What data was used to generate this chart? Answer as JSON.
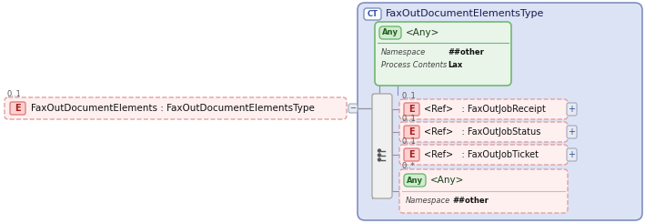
{
  "bg_color": "#ffffff",
  "main_box_color": "#dce3f5",
  "main_box_border": "#8090c0",
  "ct_label": "CT",
  "ct_label_bg": "#ffffff",
  "ct_label_border": "#8090c0",
  "main_title": "FaxOutDocumentElementsType",
  "any_box_bg": "#eaf5ea",
  "any_box_border": "#70b870",
  "any_badge_bg": "#d0ebd0",
  "any_label": "Any",
  "any_text": "<Any>",
  "any_namespace_label": "Namespace",
  "any_namespace_value": "##other",
  "any_process_label": "Process Contents",
  "any_process_value": "Lax",
  "seq_box_bg": "#f0f0f0",
  "seq_box_border": "#aaaaaa",
  "elem_dash_bg": "#fff0f0",
  "elem_dash_border": "#e0a0a0",
  "e_badge_bg": "#ffd0d0",
  "e_badge_border": "#e08080",
  "e_label": "E",
  "left_elem_bg": "#fff0f0",
  "left_elem_border": "#e0a0a0",
  "left_cardinality": "0..1",
  "left_label": "FaxOutDocumentElements : FaxOutDocumentElementsType",
  "minus_bg": "#e8eaf0",
  "minus_border": "#a0a8c0",
  "plus_bg": "#e8eaf0",
  "plus_border": "#a0a8c0",
  "elements": [
    {
      "cardinality": "0..1",
      "text": "<Ref>   : FaxOutJobReceipt"
    },
    {
      "cardinality": "0..1",
      "text": "<Ref>   : FaxOutJobStatus"
    },
    {
      "cardinality": "0..1",
      "text": "<Ref>   : FaxOutJobTicket"
    }
  ],
  "bot_any_cardinality": "0..*",
  "bot_any_text": "<Any>",
  "bot_any_namespace_label": "Namespace",
  "bot_any_namespace_value": "##other",
  "figsize": [
    7.09,
    2.45
  ],
  "dpi": 100
}
